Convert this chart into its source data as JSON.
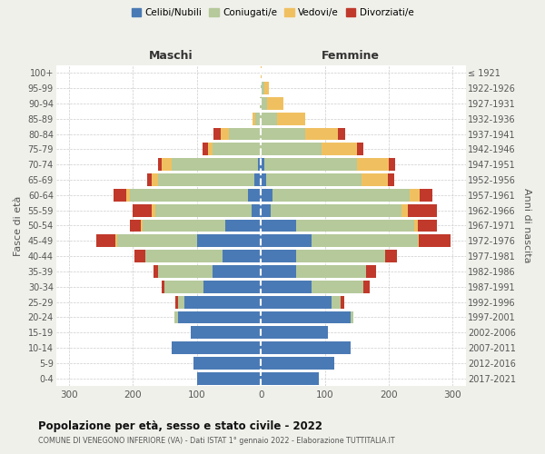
{
  "age_groups": [
    "0-4",
    "5-9",
    "10-14",
    "15-19",
    "20-24",
    "25-29",
    "30-34",
    "35-39",
    "40-44",
    "45-49",
    "50-54",
    "55-59",
    "60-64",
    "65-69",
    "70-74",
    "75-79",
    "80-84",
    "85-89",
    "90-94",
    "95-99",
    "100+"
  ],
  "birth_years": [
    "2017-2021",
    "2012-2016",
    "2007-2011",
    "2002-2006",
    "1997-2001",
    "1992-1996",
    "1987-1991",
    "1982-1986",
    "1977-1981",
    "1972-1976",
    "1967-1971",
    "1962-1966",
    "1957-1961",
    "1952-1956",
    "1947-1951",
    "1942-1946",
    "1937-1941",
    "1932-1936",
    "1927-1931",
    "1922-1926",
    "≤ 1921"
  ],
  "males_celibi": [
    100,
    105,
    140,
    110,
    130,
    120,
    90,
    75,
    60,
    100,
    55,
    15,
    20,
    10,
    5,
    0,
    0,
    0,
    0,
    0,
    0
  ],
  "males_coniugati": [
    0,
    0,
    0,
    0,
    5,
    10,
    60,
    85,
    120,
    125,
    130,
    150,
    185,
    150,
    135,
    75,
    50,
    8,
    2,
    0,
    0
  ],
  "males_vedovi": [
    0,
    0,
    0,
    0,
    0,
    0,
    0,
    0,
    0,
    2,
    2,
    5,
    5,
    10,
    15,
    8,
    12,
    5,
    0,
    0,
    0
  ],
  "males_divorziati": [
    0,
    0,
    0,
    0,
    0,
    3,
    5,
    8,
    18,
    30,
    18,
    30,
    20,
    8,
    5,
    8,
    12,
    0,
    0,
    0,
    0
  ],
  "females_nubili": [
    90,
    115,
    140,
    105,
    140,
    110,
    80,
    55,
    55,
    80,
    55,
    15,
    18,
    8,
    5,
    0,
    0,
    0,
    0,
    0,
    0
  ],
  "females_coniugate": [
    0,
    0,
    0,
    0,
    5,
    15,
    80,
    110,
    140,
    165,
    185,
    205,
    215,
    150,
    145,
    95,
    70,
    25,
    10,
    5,
    0
  ],
  "females_vedove": [
    0,
    0,
    0,
    0,
    0,
    0,
    0,
    0,
    0,
    2,
    5,
    10,
    15,
    40,
    50,
    55,
    50,
    45,
    25,
    8,
    1
  ],
  "females_divorziate": [
    0,
    0,
    0,
    0,
    0,
    5,
    10,
    15,
    18,
    50,
    30,
    45,
    20,
    10,
    10,
    10,
    12,
    0,
    0,
    0,
    0
  ],
  "color_celibi": "#4a7ab5",
  "color_coniugati": "#b5c99a",
  "color_vedovi": "#f0c060",
  "color_divorziati": "#c0392b",
  "xlim": 320,
  "xticks": [
    -300,
    -200,
    -100,
    0,
    100,
    200,
    300
  ],
  "title": "Popolazione per età, sesso e stato civile - 2022",
  "subtitle": "COMUNE DI VENEGONO INFERIORE (VA) - Dati ISTAT 1° gennaio 2022 - Elaborazione TUTTITALIA.IT",
  "ylabel_left": "Fasce di età",
  "ylabel_right": "Anni di nascita",
  "header_left": "Maschi",
  "header_right": "Femmine",
  "legend_labels": [
    "Celibi/Nubili",
    "Coniugati/e",
    "Vedovi/e",
    "Divorziati/e"
  ],
  "bg_color": "#f0f0eb",
  "plot_bg": "#ffffff"
}
